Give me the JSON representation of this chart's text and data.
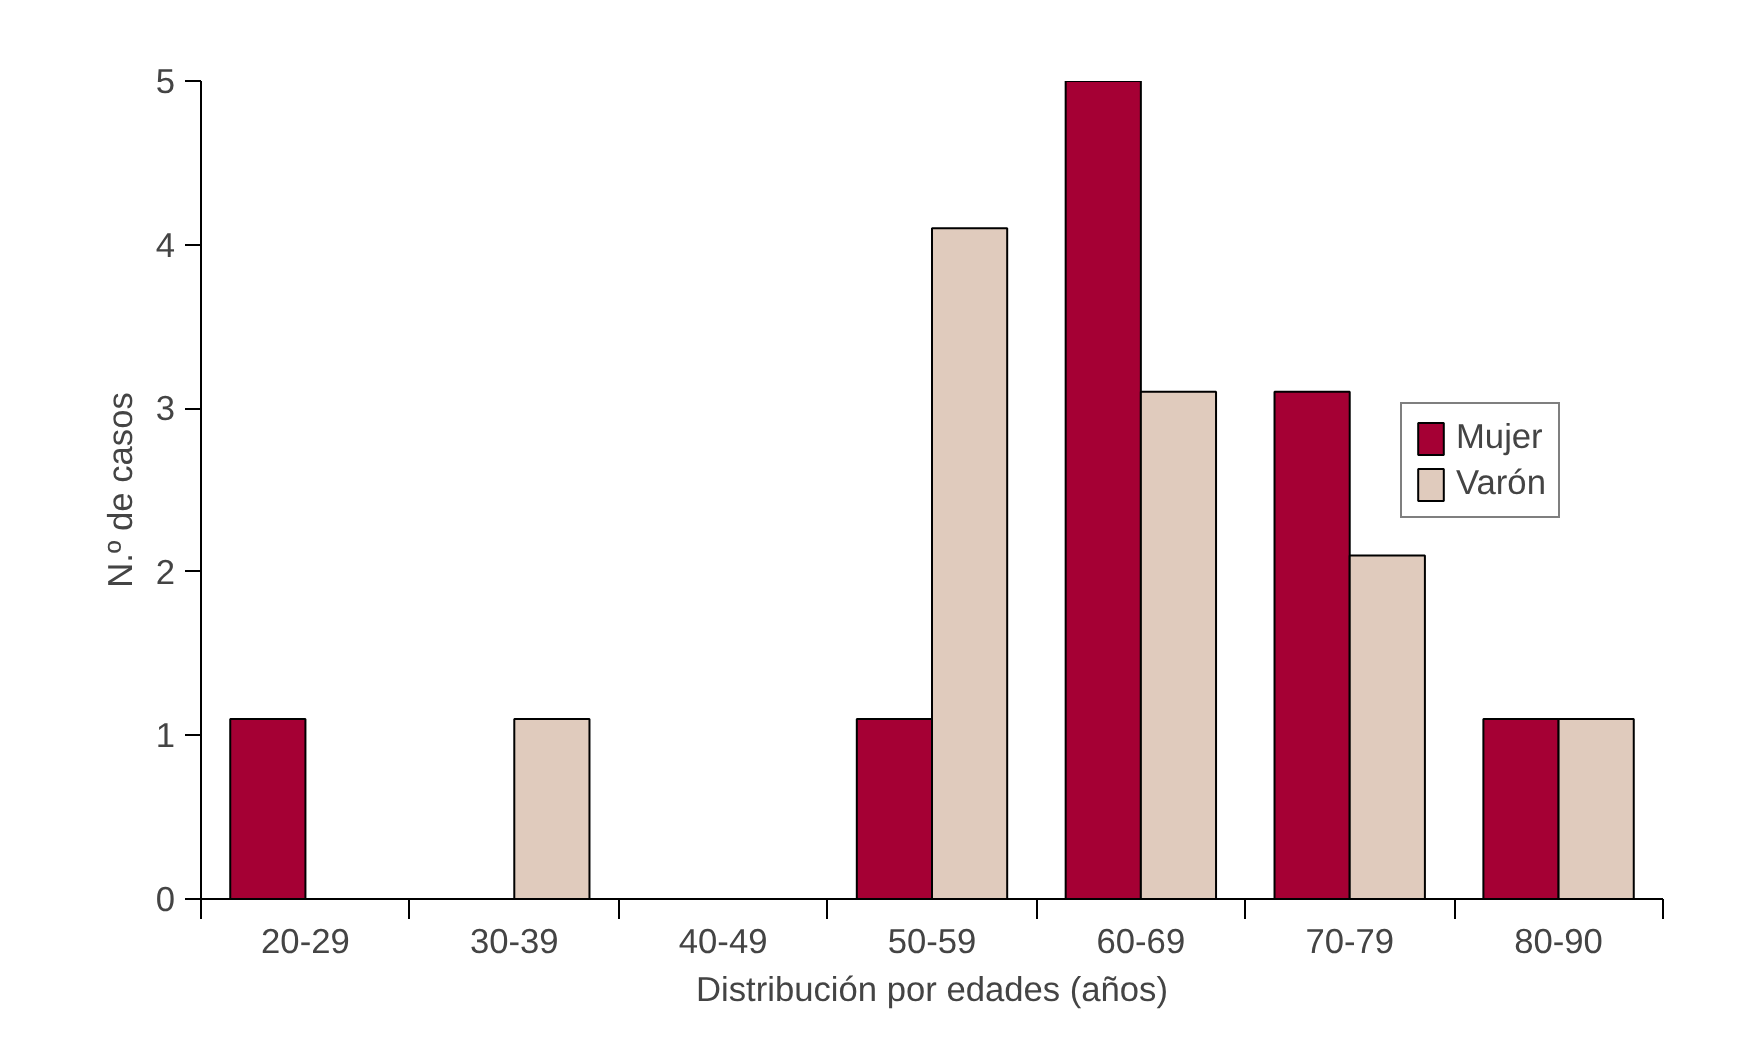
{
  "chart_data": {
    "type": "bar",
    "xlabel": "Distribución por edades (años)",
    "ylabel": "N.º de casos",
    "categories": [
      "20-29",
      "30-39",
      "40-49",
      "50-59",
      "60-69",
      "70-79",
      "80-90"
    ],
    "series": [
      {
        "name": "Mujer",
        "color": "#a50034",
        "values": [
          1.1,
          null,
          null,
          1.1,
          5,
          3.1,
          1.1
        ]
      },
      {
        "name": "Varón",
        "color": "#e0cbbd",
        "values": [
          null,
          1.1,
          null,
          4.1,
          3.1,
          2.1,
          1.1
        ]
      }
    ],
    "ylim": [
      0,
      5
    ],
    "yticks": [
      0,
      1,
      2,
      3,
      4,
      5
    ],
    "grid": false,
    "legend": "right"
  }
}
